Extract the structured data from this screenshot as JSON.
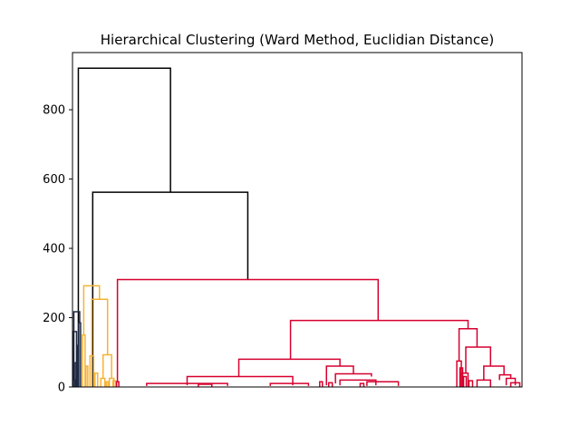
{
  "chart_data": {
    "type": "dendrogram",
    "title": "Hierarchical Clustering (Ward Method, Euclidian Distance)",
    "xlabel": "",
    "ylabel": "",
    "ylim": [
      0,
      965
    ],
    "yticks": [
      0,
      200,
      400,
      600,
      800
    ],
    "show_x_ticks": false,
    "grid": false,
    "link_colors": {
      "above_threshold": "#000000",
      "cluster_navy": "#1f2a44",
      "cluster_orange": "#f5b234",
      "cluster_red": "#d6002f"
    },
    "leaf_span": [
      0,
      100
    ],
    "merges": [
      {
        "color": "#000000",
        "x": [
          1.3,
          1.3,
          21.8,
          21.8
        ],
        "y": [
          0,
          920,
          920,
          562
        ]
      },
      {
        "color": "#000000",
        "x": [
          4.5,
          4.5,
          39.0,
          39.0
        ],
        "y": [
          0,
          562,
          562,
          310
        ]
      },
      {
        "color": "#1f2a44",
        "x": [
          0.3,
          0.3,
          1.6,
          1.6
        ],
        "y": [
          20,
          217,
          217,
          185
        ]
      },
      {
        "color": "#1f2a44",
        "x": [
          0.5,
          0.5,
          0.7,
          0.7
        ],
        "y": [
          0,
          20,
          20,
          0
        ]
      },
      {
        "color": "#1f2a44",
        "x": [
          0.2,
          0.2,
          0.9,
          0.9
        ],
        "y": [
          0,
          160,
          160,
          0
        ]
      },
      {
        "color": "#1f2a44",
        "x": [
          1.0,
          1.0,
          1.2,
          1.2
        ],
        "y": [
          0,
          120,
          120,
          0
        ]
      },
      {
        "color": "#1f2a44",
        "x": [
          1.4,
          1.4,
          1.8,
          1.8
        ],
        "y": [
          0,
          185,
          185,
          0
        ]
      },
      {
        "color": "#1f2a44",
        "x": [
          0.6,
          0.6,
          1.1,
          1.1
        ],
        "y": [
          0,
          70,
          70,
          0
        ]
      },
      {
        "color": "#f5b234",
        "x": [
          2.5,
          2.5,
          6.0,
          6.0
        ],
        "y": [
          150,
          292,
          292,
          253
        ]
      },
      {
        "color": "#f5b234",
        "x": [
          2.2,
          2.2,
          2.8,
          2.8
        ],
        "y": [
          0,
          150,
          150,
          0
        ]
      },
      {
        "color": "#f5b234",
        "x": [
          4.3,
          4.3,
          7.8,
          7.8
        ],
        "y": [
          90,
          253,
          253,
          93
        ]
      },
      {
        "color": "#f5b234",
        "x": [
          3.9,
          3.9,
          4.7,
          4.7
        ],
        "y": [
          0,
          90,
          90,
          0
        ]
      },
      {
        "color": "#f5b234",
        "x": [
          6.8,
          6.8,
          8.7,
          8.7
        ],
        "y": [
          25,
          93,
          93,
          25
        ]
      },
      {
        "color": "#f5b234",
        "x": [
          3.0,
          3.0,
          3.4,
          3.4
        ],
        "y": [
          0,
          60,
          60,
          0
        ]
      },
      {
        "color": "#f5b234",
        "x": [
          5.0,
          5.0,
          5.6,
          5.6
        ],
        "y": [
          0,
          40,
          40,
          0
        ]
      },
      {
        "color": "#f5b234",
        "x": [
          6.3,
          6.3,
          7.2,
          7.2
        ],
        "y": [
          0,
          25,
          25,
          0
        ]
      },
      {
        "color": "#f5b234",
        "x": [
          8.2,
          8.2,
          9.2,
          9.2
        ],
        "y": [
          0,
          25,
          25,
          0
        ]
      },
      {
        "color": "#f5b234",
        "x": [
          7.5,
          7.5,
          7.9,
          7.9
        ],
        "y": [
          0,
          15,
          15,
          0
        ]
      },
      {
        "color": "#f5b234",
        "x": [
          9.0,
          9.0,
          9.6,
          9.6
        ],
        "y": [
          0,
          18,
          18,
          0
        ]
      },
      {
        "color": "#d6002f",
        "x": [
          10.0,
          10.0,
          68.0,
          68.0
        ],
        "y": [
          15,
          310,
          310,
          192
        ]
      },
      {
        "color": "#d6002f",
        "x": [
          9.8,
          9.8,
          10.3,
          10.3
        ],
        "y": [
          0,
          15,
          15,
          0
        ]
      },
      {
        "color": "#d6002f",
        "x": [
          48.5,
          48.5,
          88.0,
          88.0
        ],
        "y": [
          80,
          192,
          192,
          168
        ]
      },
      {
        "color": "#d6002f",
        "x": [
          37.0,
          37.0,
          59.5,
          59.5
        ],
        "y": [
          30,
          80,
          80,
          60
        ]
      },
      {
        "color": "#d6002f",
        "x": [
          25.5,
          25.5,
          49.0,
          49.0
        ],
        "y": [
          5,
          30,
          30,
          5
        ]
      },
      {
        "color": "#d6002f",
        "x": [
          16.5,
          16.5,
          34.5,
          34.5
        ],
        "y": [
          3,
          10,
          10,
          3
        ]
      },
      {
        "color": "#d6002f",
        "x": [
          44.0,
          44.0,
          52.5,
          52.5
        ],
        "y": [
          3,
          10,
          10,
          3
        ]
      },
      {
        "color": "#d6002f",
        "x": [
          56.5,
          56.5,
          62.5,
          62.5
        ],
        "y": [
          5,
          60,
          60,
          38
        ]
      },
      {
        "color": "#d6002f",
        "x": [
          58.5,
          58.5,
          66.5,
          66.5
        ],
        "y": [
          10,
          38,
          38,
          30
        ]
      },
      {
        "color": "#d6002f",
        "x": [
          59.5,
          59.5,
          67.5,
          67.5
        ],
        "y": [
          5,
          20,
          20,
          5
        ]
      },
      {
        "color": "#d6002f",
        "x": [
          65.5,
          65.5,
          72.5,
          72.5
        ],
        "y": [
          3,
          15,
          15,
          3
        ]
      },
      {
        "color": "#d6002f",
        "x": [
          86.0,
          86.0,
          90.0,
          90.0
        ],
        "y": [
          75,
          168,
          168,
          115
        ]
      },
      {
        "color": "#d6002f",
        "x": [
          85.5,
          85.5,
          86.5,
          86.5
        ],
        "y": [
          0,
          75,
          75,
          0
        ]
      },
      {
        "color": "#d6002f",
        "x": [
          87.5,
          87.5,
          93.0,
          93.0
        ],
        "y": [
          40,
          115,
          115,
          60
        ]
      },
      {
        "color": "#d6002f",
        "x": [
          86.5,
          86.5,
          88.0,
          88.0
        ],
        "y": [
          0,
          40,
          40,
          0
        ]
      },
      {
        "color": "#d6002f",
        "x": [
          91.5,
          91.5,
          96.0,
          96.0
        ],
        "y": [
          20,
          60,
          60,
          35
        ]
      },
      {
        "color": "#d6002f",
        "x": [
          90.0,
          90.0,
          93.0,
          93.0
        ],
        "y": [
          0,
          20,
          20,
          0
        ]
      },
      {
        "color": "#d6002f",
        "x": [
          95.0,
          95.0,
          97.5,
          97.5
        ],
        "y": [
          20,
          35,
          35,
          25
        ]
      },
      {
        "color": "#d6002f",
        "x": [
          96.5,
          96.5,
          98.5,
          98.5
        ],
        "y": [
          5,
          25,
          25,
          5
        ]
      },
      {
        "color": "#d6002f",
        "x": [
          97.5,
          97.5,
          99.5,
          99.5
        ],
        "y": [
          0,
          12,
          12,
          0
        ]
      },
      {
        "color": "#d6002f",
        "x": [
          28.0,
          28.0,
          31.0,
          31.0
        ],
        "y": [
          0,
          8,
          8,
          0
        ]
      },
      {
        "color": "#d6002f",
        "x": [
          55.0,
          55.0,
          55.6,
          55.6
        ],
        "y": [
          0,
          15,
          15,
          0
        ]
      },
      {
        "color": "#d6002f",
        "x": [
          57.0,
          57.0,
          57.8,
          57.8
        ],
        "y": [
          0,
          12,
          12,
          0
        ]
      },
      {
        "color": "#d6002f",
        "x": [
          64.0,
          64.0,
          64.8,
          64.8
        ],
        "y": [
          0,
          10,
          10,
          0
        ]
      },
      {
        "color": "#d6002f",
        "x": [
          86.2,
          86.2,
          86.8,
          86.8
        ],
        "y": [
          0,
          55,
          55,
          0
        ]
      },
      {
        "color": "#d6002f",
        "x": [
          87.0,
          87.0,
          87.6,
          87.6
        ],
        "y": [
          0,
          30,
          30,
          0
        ]
      },
      {
        "color": "#d6002f",
        "x": [
          88.2,
          88.2,
          89.0,
          89.0
        ],
        "y": [
          0,
          18,
          18,
          0
        ]
      }
    ]
  }
}
